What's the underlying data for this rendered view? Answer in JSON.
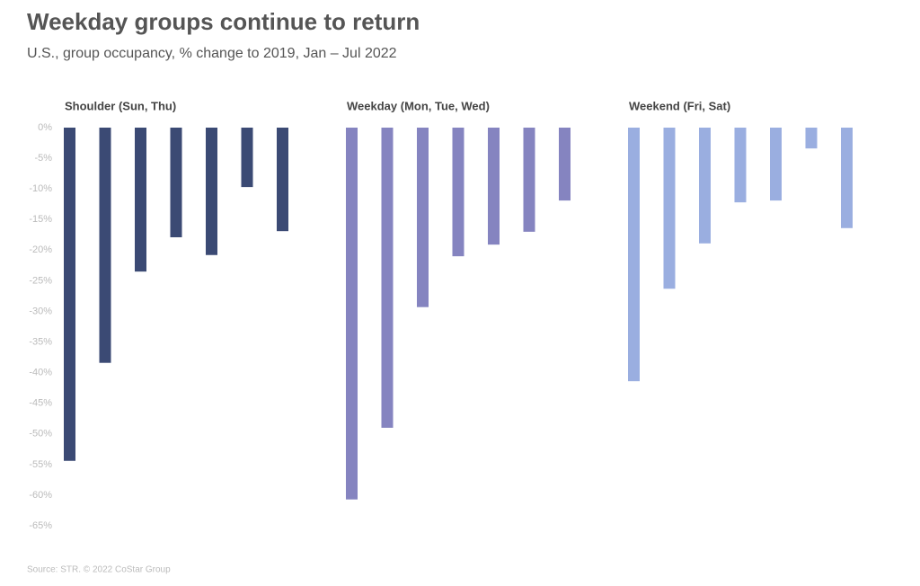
{
  "chart_data": {
    "type": "bar",
    "title": "Weekday groups continue to return",
    "subtitle": "U.S., group occupancy, % change to 2019, Jan – Jul 2022",
    "source": "Source: STR. © 2022 CoStar Group",
    "categories": [
      null,
      null,
      null,
      null,
      null,
      null,
      null
    ],
    "series": [
      {
        "name": "Shoulder (Sun, Thu)",
        "color": "#3b4a74",
        "values": [
          -54.4,
          -38.4,
          -23.5,
          -17.9,
          -20.8,
          -9.7,
          -16.9
        ]
      },
      {
        "name": "Weekday (Mon, Tue, Wed)",
        "color": "#8584c0",
        "values": [
          -60.7,
          -49.0,
          -29.3,
          -21.0,
          -19.1,
          -17.0,
          -11.9
        ]
      },
      {
        "name": "Weekend (Fri, Sat)",
        "color": "#9aaee0",
        "values": [
          -41.4,
          -26.3,
          -18.9,
          -12.2,
          -11.9,
          -3.4,
          -16.4
        ]
      }
    ],
    "ylim": [
      -65,
      0
    ],
    "yticks": [
      {
        "value": 0,
        "label": "0%"
      },
      {
        "value": -5,
        "label": "-5%"
      },
      {
        "value": -10,
        "label": "-10%"
      },
      {
        "value": -15,
        "label": "-15%"
      },
      {
        "value": -20,
        "label": "-20%"
      },
      {
        "value": -25,
        "label": "-25%"
      },
      {
        "value": -30,
        "label": "-30%"
      },
      {
        "value": -35,
        "label": "-35%"
      },
      {
        "value": -40,
        "label": "-40%"
      },
      {
        "value": -45,
        "label": "-45%"
      },
      {
        "value": -50,
        "label": "-50%"
      },
      {
        "value": -55,
        "label": "-55%"
      },
      {
        "value": -60,
        "label": "-60%"
      },
      {
        "value": -65,
        "label": "-65%"
      }
    ]
  }
}
